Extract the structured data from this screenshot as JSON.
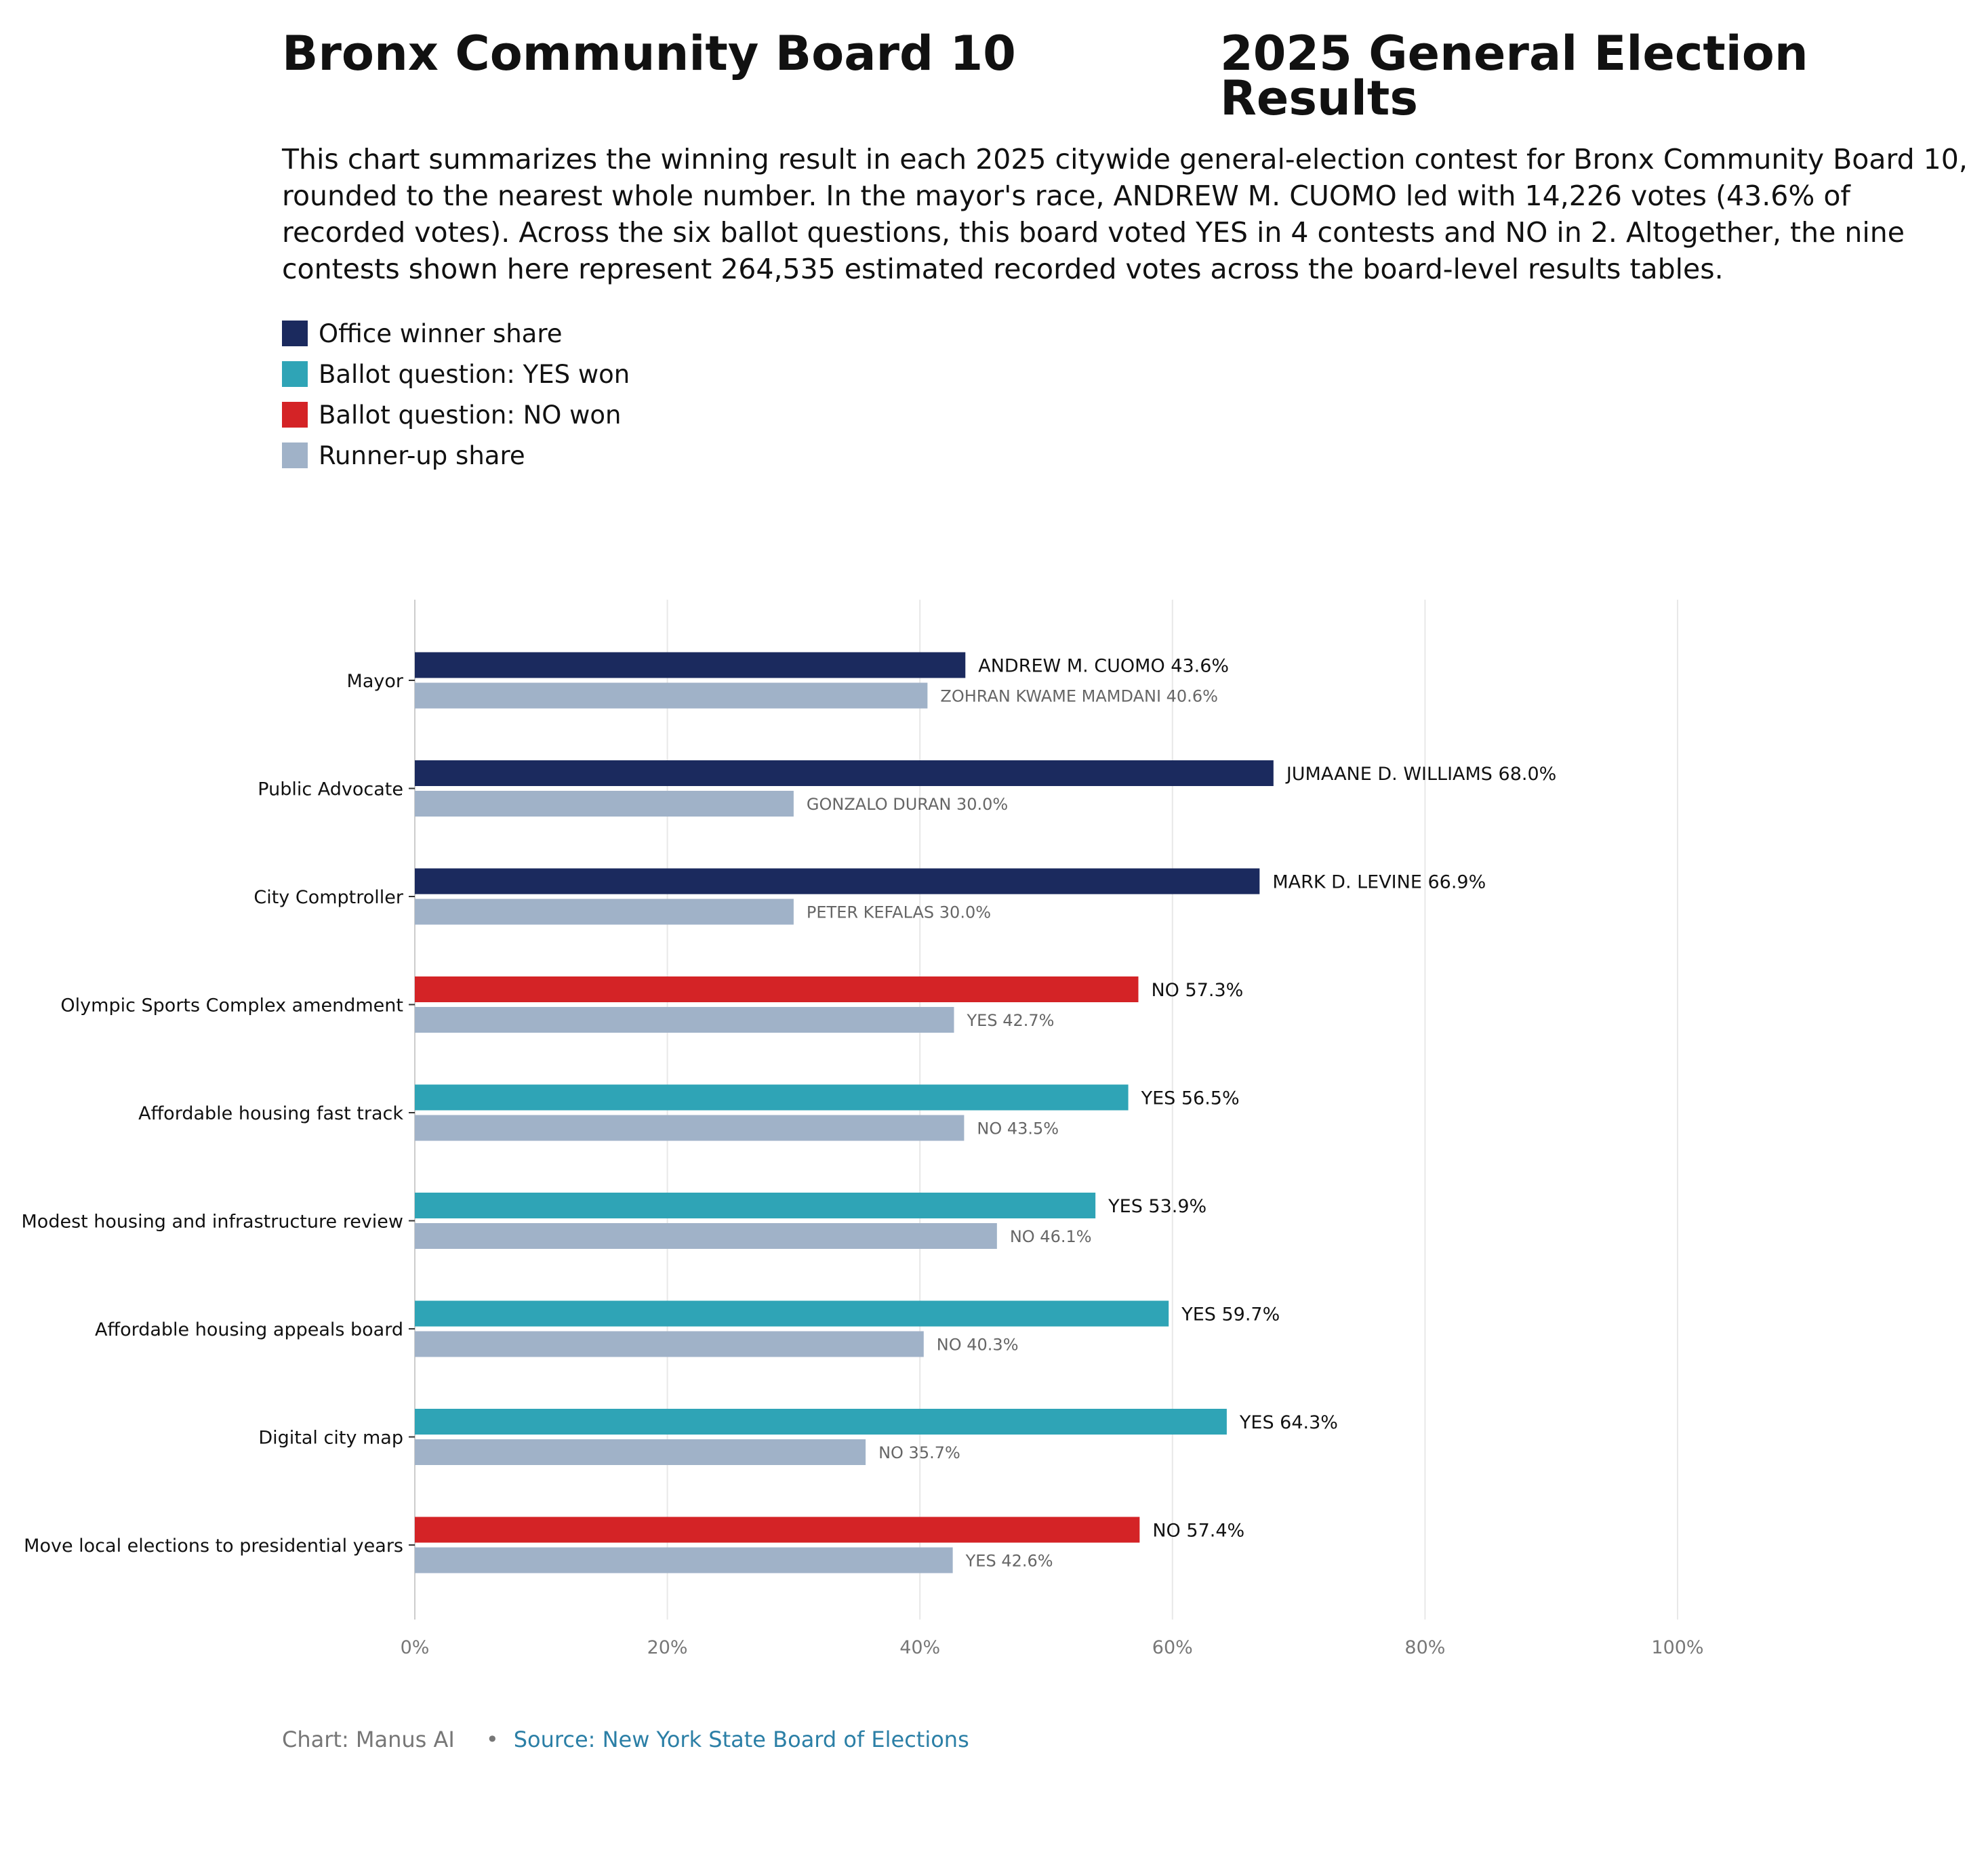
{
  "header": {
    "title_left": "Bronx Community Board 10",
    "title_right": "2025 General Election Results",
    "description": "This chart summarizes the winning result in each 2025 citywide general-election contest for Bronx Community Board 10, rounded to the nearest whole number. In the mayor's race, ANDREW M. CUOMO led with 14,226 votes (43.6% of recorded votes). Across the six ballot questions, this board voted YES in 4 contests and NO in 2. Altogether, the nine contests shown here represent 264,535 estimated recorded votes across the board-level results tables."
  },
  "legend": [
    {
      "label": "Office winner share",
      "color": "#1b2a5e"
    },
    {
      "label": "Ballot question: YES won",
      "color": "#2fa4b6"
    },
    {
      "label": "Ballot question: NO won",
      "color": "#d42326"
    },
    {
      "label": "Runner-up share",
      "color": "#a0b2c8"
    }
  ],
  "chart_data": {
    "type": "bar",
    "orientation": "horizontal",
    "xlim": [
      0,
      100
    ],
    "x_ticks": [
      "0%",
      "20%",
      "40%",
      "60%",
      "80%",
      "100%"
    ],
    "x_tick_values": [
      0,
      20,
      40,
      60,
      80,
      100
    ],
    "grid": "vertical",
    "colors": {
      "office": "#1b2a5e",
      "yes": "#2fa4b6",
      "no": "#d42326",
      "runner_up": "#a0b2c8",
      "winner_text": "#111111",
      "runner_text": "#666666"
    },
    "categories": [
      "Mayor",
      "Public Advocate",
      "City Comptroller",
      "Olympic Sports Complex amendment",
      "Affordable housing fast track",
      "Modest housing and infrastructure review",
      "Affordable housing appeals board",
      "Digital city map",
      "Move local elections to presidential years"
    ],
    "winners": [
      {
        "kind": "office",
        "value": 43.6,
        "label": "ANDREW M. CUOMO 43.6%"
      },
      {
        "kind": "office",
        "value": 68.0,
        "label": "JUMAANE D. WILLIAMS 68.0%"
      },
      {
        "kind": "office",
        "value": 66.9,
        "label": "MARK D. LEVINE 66.9%"
      },
      {
        "kind": "no",
        "value": 57.3,
        "label": "NO 57.3%"
      },
      {
        "kind": "yes",
        "value": 56.5,
        "label": "YES 56.5%"
      },
      {
        "kind": "yes",
        "value": 53.9,
        "label": "YES 53.9%"
      },
      {
        "kind": "yes",
        "value": 59.7,
        "label": "YES 59.7%"
      },
      {
        "kind": "yes",
        "value": 64.3,
        "label": "YES 64.3%"
      },
      {
        "kind": "no",
        "value": 57.4,
        "label": "NO 57.4%"
      }
    ],
    "runners_up": [
      {
        "value": 40.6,
        "label": "ZOHRAN KWAME MAMDANI 40.6%"
      },
      {
        "value": 30.0,
        "label": "GONZALO DURAN 30.0%"
      },
      {
        "value": 30.0,
        "label": "PETER KEFALAS 30.0%"
      },
      {
        "value": 42.7,
        "label": "YES 42.7%"
      },
      {
        "value": 43.5,
        "label": "NO 43.5%"
      },
      {
        "value": 46.1,
        "label": "NO 46.1%"
      },
      {
        "value": 40.3,
        "label": "NO 40.3%"
      },
      {
        "value": 35.7,
        "label": "NO 35.7%"
      },
      {
        "value": 42.6,
        "label": "YES 42.6%"
      }
    ]
  },
  "footer": {
    "credit": "Chart: Manus AI",
    "separator": "•",
    "source": "Source: New York State Board of Elections"
  }
}
